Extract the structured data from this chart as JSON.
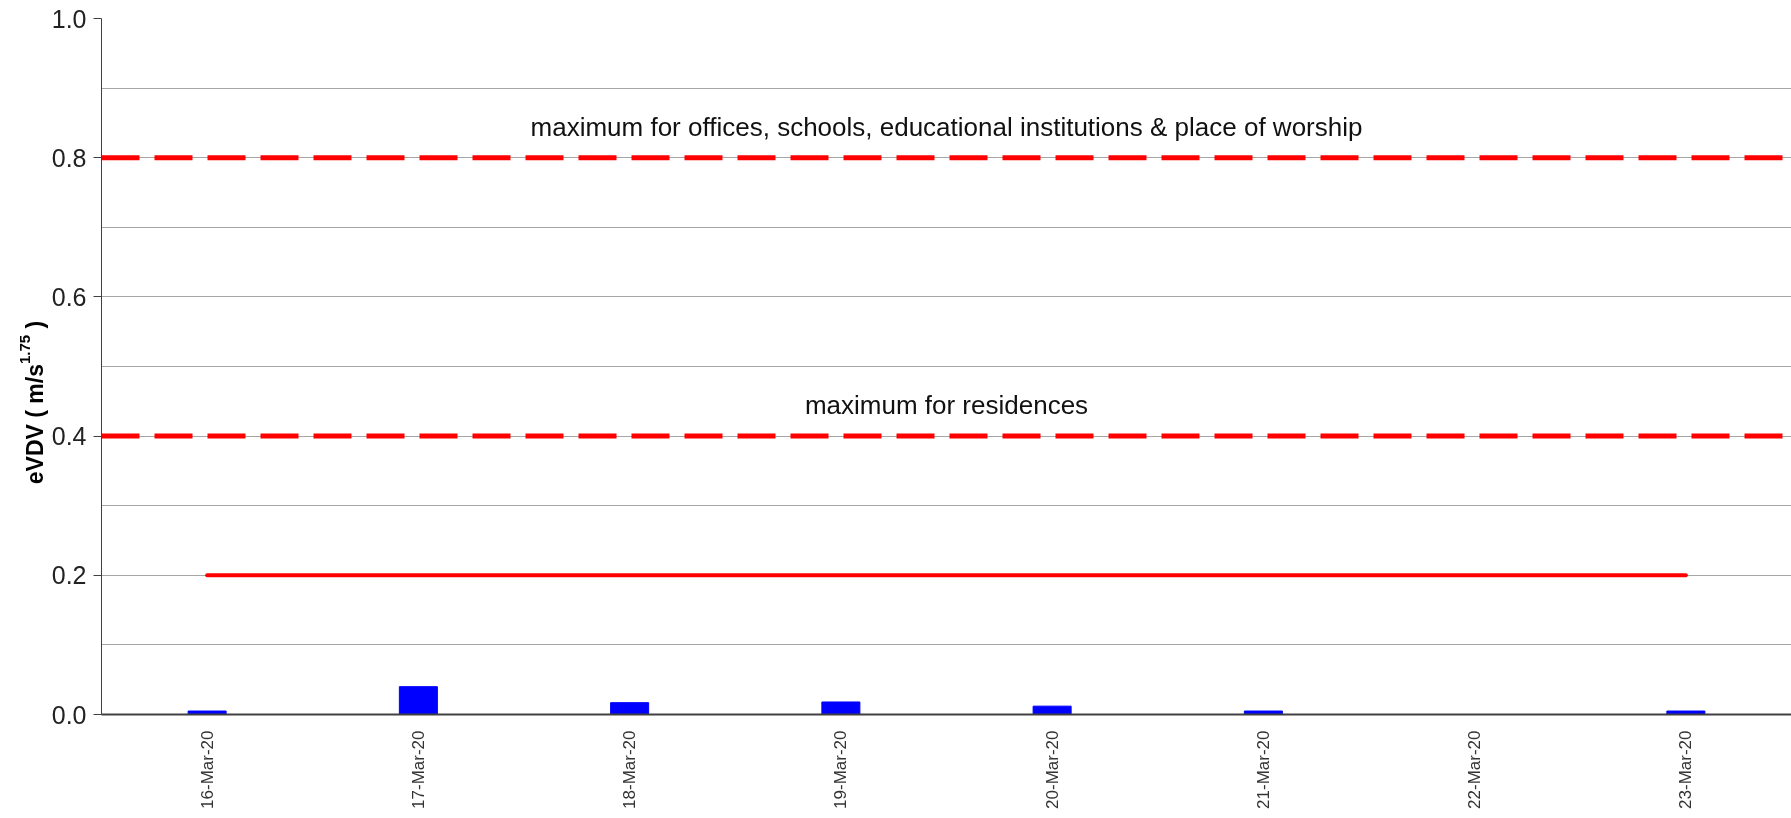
{
  "chart_data": {
    "type": "bar",
    "ylabel": "eVDV ( m/s$^{1.75}$ )",
    "categories": [
      "16-Mar-20",
      "17-Mar-20",
      "18-Mar-20",
      "19-Mar-20",
      "20-Mar-20",
      "21-Mar-20",
      "22-Mar-20",
      "23-Mar-20"
    ],
    "series": [
      {
        "color": "#0000ff",
        "values": [
          0.005,
          0.04,
          0.017,
          0.018,
          0.012,
          0.005,
          null,
          0.005
        ]
      },
      {
        "type": "line",
        "color": "#ff0000",
        "values": [
          0.2,
          0.2,
          0.2,
          0.2,
          0.2,
          0.2,
          0.2,
          0.2
        ]
      }
    ],
    "ylim": [
      0,
      1.0
    ],
    "yticks": [
      {
        "value": 0,
        "label": "0.0"
      },
      {
        "value": 0.1,
        "label": null
      },
      0.2,
      {
        "value": 0.3,
        "label": null
      },
      0.4,
      {
        "value": 0.5,
        "label": null
      },
      0.6,
      {
        "value": 0.7,
        "label": null
      },
      0.8,
      {
        "value": 0.9,
        "label": null
      },
      {
        "value": 1.0,
        "label": "1.0"
      }
    ],
    "grid": "y",
    "ref_lines": [
      {
        "axis": "y",
        "value": 0.8,
        "label": "maximum for offices, schools, educational institutions & place of worship",
        "color": "#ff0000",
        "line_style": "dashed"
      },
      {
        "axis": "y",
        "value": 0.4,
        "label": "maximum for residences",
        "color": "#ff0000",
        "line_style": "dashed"
      }
    ]
  }
}
